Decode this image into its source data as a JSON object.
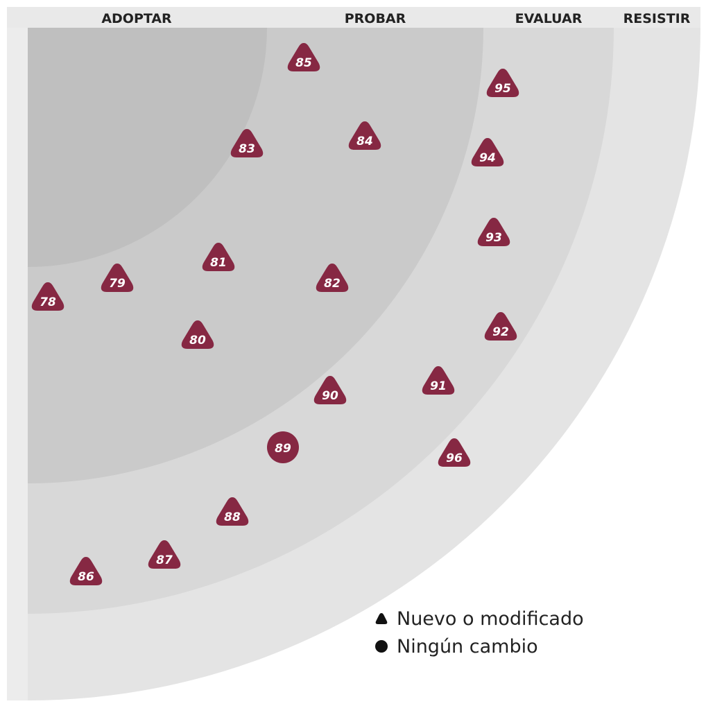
{
  "rings": [
    {
      "id": "adopt",
      "label": "ADOPTAR"
    },
    {
      "id": "trial",
      "label": "PROBAR"
    },
    {
      "id": "assess",
      "label": "EVALUAR"
    },
    {
      "id": "hold",
      "label": "RESISTIR"
    }
  ],
  "blips": [
    {
      "num": "78",
      "shape": "triangle"
    },
    {
      "num": "79",
      "shape": "triangle"
    },
    {
      "num": "80",
      "shape": "triangle"
    },
    {
      "num": "81",
      "shape": "triangle"
    },
    {
      "num": "82",
      "shape": "triangle"
    },
    {
      "num": "83",
      "shape": "triangle"
    },
    {
      "num": "84",
      "shape": "triangle"
    },
    {
      "num": "85",
      "shape": "triangle"
    },
    {
      "num": "86",
      "shape": "triangle"
    },
    {
      "num": "87",
      "shape": "triangle"
    },
    {
      "num": "88",
      "shape": "triangle"
    },
    {
      "num": "89",
      "shape": "circle"
    },
    {
      "num": "90",
      "shape": "triangle"
    },
    {
      "num": "91",
      "shape": "triangle"
    },
    {
      "num": "92",
      "shape": "triangle"
    },
    {
      "num": "93",
      "shape": "triangle"
    },
    {
      "num": "94",
      "shape": "triangle"
    },
    {
      "num": "95",
      "shape": "triangle"
    },
    {
      "num": "96",
      "shape": "triangle"
    }
  ],
  "legend": {
    "new_label": "Nuevo o modificado",
    "nochange_label": "Ningún cambio"
  },
  "colors": {
    "blip": "#862843",
    "ring_adopt": "#bfbfbf",
    "ring_trial": "#cacaca",
    "ring_assess": "#d8d8d8",
    "ring_hold": "#e4e4e4"
  }
}
